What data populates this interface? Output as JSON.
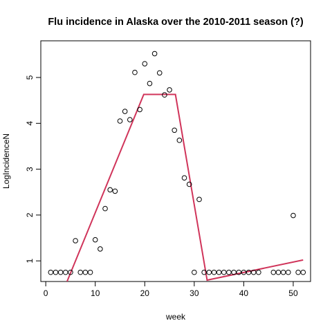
{
  "chart_data": {
    "type": "scatter",
    "title": "Flu incidence in Alaska over the 2010-2011 season (?)",
    "xlabel": "week",
    "ylabel": "LogIncidenceN",
    "xlim": [
      -1,
      53.5
    ],
    "ylim": [
      0.55,
      5.8
    ],
    "xticks": [
      0,
      10,
      20,
      30,
      40,
      50
    ],
    "yticks": [
      1,
      2,
      3,
      4,
      5
    ],
    "grid": false,
    "colors": {
      "points": "#000000",
      "fit_line": "#d0345a"
    },
    "series": [
      {
        "type": "scatter",
        "marker": "open-circle",
        "x": [
          1,
          2,
          3,
          4,
          5,
          6,
          7,
          8,
          9,
          10,
          11,
          12,
          13,
          14,
          15,
          16,
          17,
          18,
          19,
          20,
          21,
          22,
          23,
          24,
          25,
          26,
          27,
          28,
          29,
          30,
          31,
          32,
          33,
          34,
          35,
          36,
          37,
          38,
          39,
          40,
          41,
          42,
          43,
          46,
          47,
          48,
          49,
          50,
          51,
          52
        ],
        "y": [
          0.75,
          0.75,
          0.75,
          0.75,
          0.75,
          1.44,
          0.75,
          0.75,
          0.75,
          1.46,
          1.26,
          2.14,
          2.55,
          2.52,
          4.05,
          4.26,
          4.08,
          5.11,
          4.3,
          5.3,
          4.87,
          5.52,
          5.1,
          4.62,
          4.73,
          3.85,
          3.63,
          2.81,
          2.67,
          0.75,
          2.34,
          0.75,
          0.75,
          0.75,
          0.75,
          0.75,
          0.75,
          0.75,
          0.75,
          0.75,
          0.75,
          0.75,
          0.75,
          0.75,
          0.75,
          0.75,
          0.75,
          1.99,
          0.75,
          0.75
        ]
      },
      {
        "type": "line",
        "x": [
          4.3,
          19.8,
          26.2,
          32.6,
          52
        ],
        "y": [
          0.55,
          4.63,
          4.63,
          0.58,
          1.02
        ]
      }
    ]
  }
}
